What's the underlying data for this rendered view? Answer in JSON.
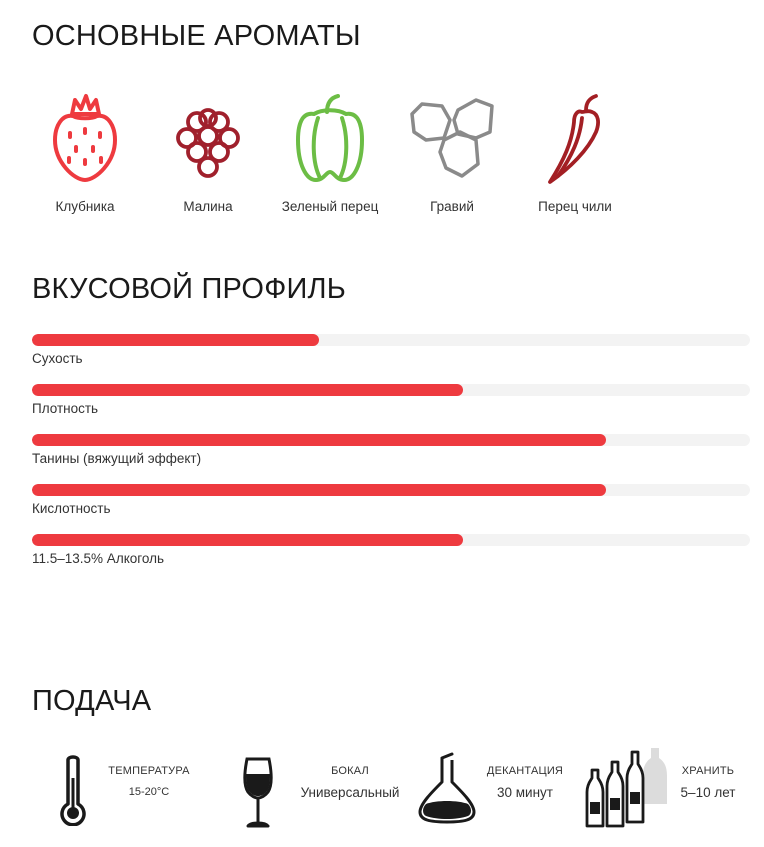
{
  "aromas": {
    "title": "ОСНОВНЫЕ АРОМАТЫ",
    "items": [
      {
        "label": "Клубника",
        "icon": "strawberry-icon",
        "color": "#ee3a3f"
      },
      {
        "label": "Малина",
        "icon": "raspberry-icon",
        "color": "#a0202c"
      },
      {
        "label": "Зеленый перец",
        "icon": "green-pepper-icon",
        "color": "#6cbd45"
      },
      {
        "label": "Гравий",
        "icon": "gravel-icon",
        "color": "#8a8a8a"
      },
      {
        "label": "Перец чили",
        "icon": "chili-pepper-icon",
        "color": "#a31f24"
      }
    ]
  },
  "taste": {
    "title": "ВКУСОВОЙ ПРОФИЛЬ",
    "bar_color": "#ee3a3f",
    "track_color": "#f3f3f3",
    "bars": [
      {
        "label": "Сухость",
        "level": 0.4
      },
      {
        "label": "Плотность",
        "level": 0.6
      },
      {
        "label": "Танины (вяжущий эффект)",
        "level": 0.8
      },
      {
        "label": "Кислотность",
        "level": 0.8
      },
      {
        "label": "11.5–13.5% Алкоголь",
        "level": 0.6
      }
    ]
  },
  "serving": {
    "title": "ПОДАЧА",
    "items": [
      {
        "title": "ТЕМПЕРАТУРА",
        "value": "15-20°C",
        "icon": "thermometer-icon"
      },
      {
        "title": "БОКАЛ",
        "value": "Универсальный",
        "icon": "wine-glass-icon"
      },
      {
        "title": "ДЕКАНТАЦИЯ",
        "value": "30 минут",
        "icon": "decanter-icon"
      },
      {
        "title": "ХРАНИТЬ",
        "value": "5–10 лет",
        "icon": "bottles-icon"
      }
    ]
  }
}
